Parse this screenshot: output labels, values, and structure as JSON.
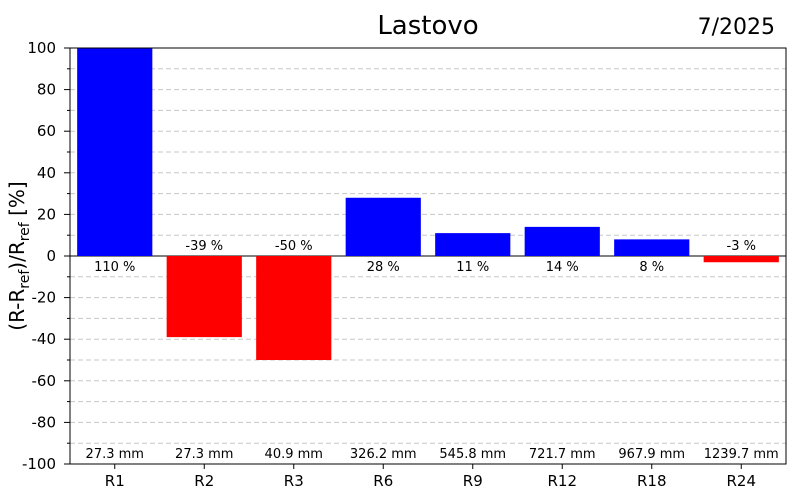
{
  "chart_data": {
    "type": "bar",
    "title": "Lastovo",
    "date": "7/2025",
    "ylabel": {
      "prefix": "(R-R",
      "sub1": "ref",
      "mid": ")/R",
      "sub2": "ref",
      "suffix": " [%]"
    },
    "ylim": [
      -100,
      100
    ],
    "yticks": [
      100,
      80,
      60,
      40,
      20,
      0,
      -20,
      -40,
      -60,
      -80,
      -100
    ],
    "categories": [
      "R1",
      "R2",
      "R3",
      "R6",
      "R9",
      "R12",
      "R18",
      "R24"
    ],
    "values": [
      110,
      -39,
      -50,
      28,
      11,
      14,
      8,
      -3
    ],
    "value_labels": [
      "110 %",
      "-39 %",
      "-50 %",
      "28 %",
      "11 %",
      "14 %",
      "8 %",
      "-3 %"
    ],
    "precip_labels": [
      "27.3 mm",
      "27.3 mm",
      "40.9 mm",
      "326.2 mm",
      "545.8 mm",
      "721.7 mm",
      "967.9 mm",
      "1239.7 mm"
    ],
    "grid": true,
    "colors": {
      "positive": "#0000ff",
      "negative": "#ff0000",
      "grid": "#c8c8c8"
    }
  }
}
